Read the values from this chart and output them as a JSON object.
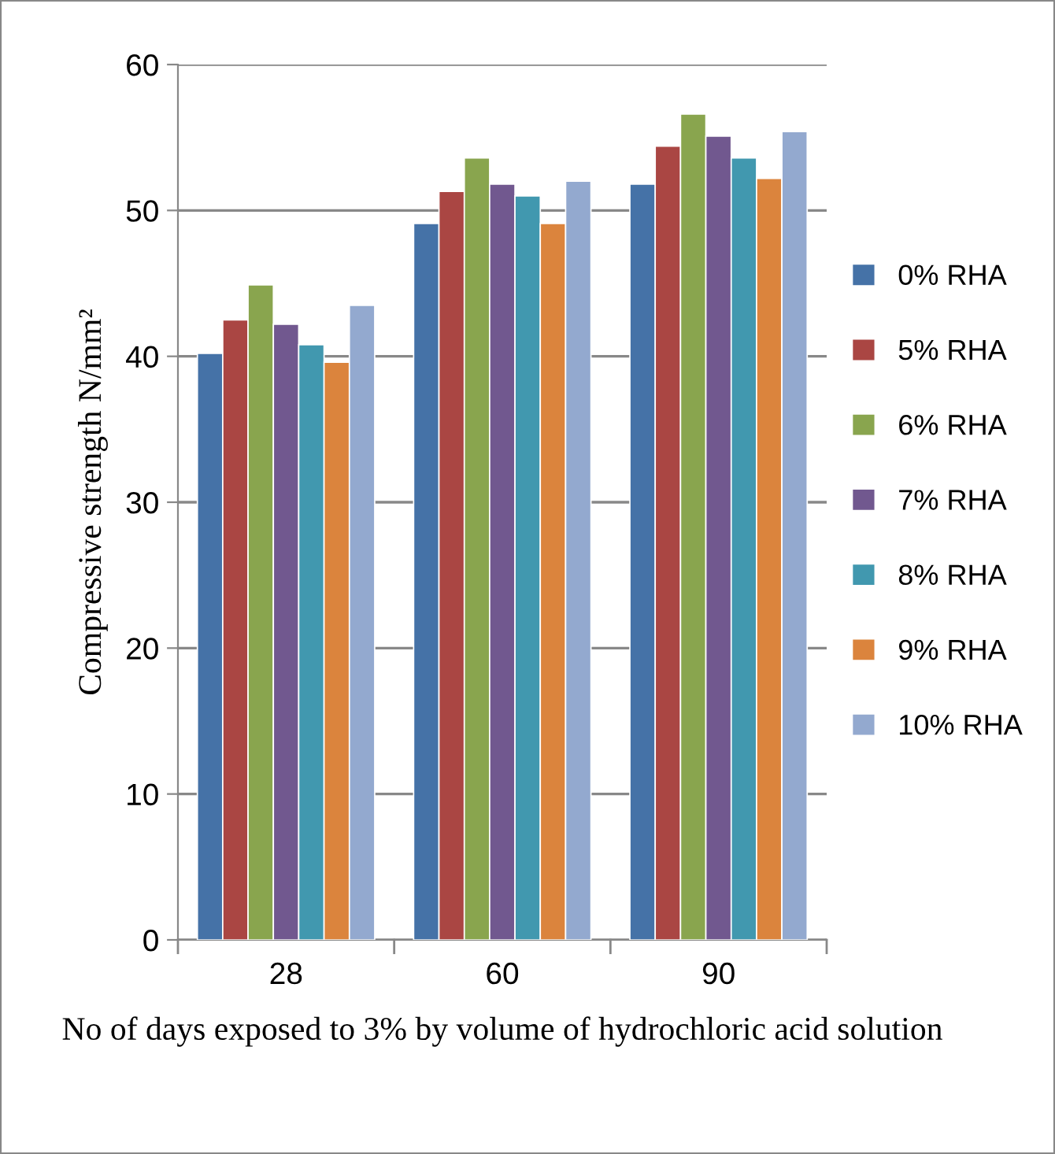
{
  "chart_data": {
    "type": "bar",
    "xlabel": "No of days exposed to 3% by volume of hydrochloric acid solution",
    "ylabel": "Compressive strength N/mm²",
    "categories": [
      "28",
      "60",
      "90"
    ],
    "series": [
      {
        "name": "0% RHA",
        "color": "#4572a7",
        "values": [
          40.2,
          49.1,
          51.8
        ]
      },
      {
        "name": "5% RHA",
        "color": "#aa4643",
        "values": [
          42.5,
          51.3,
          54.4
        ]
      },
      {
        "name": "6% RHA",
        "color": "#89a54e",
        "values": [
          44.9,
          53.6,
          56.6
        ]
      },
      {
        "name": "7% RHA",
        "color": "#71588f",
        "values": [
          42.2,
          51.8,
          55.1
        ]
      },
      {
        "name": "8% RHA",
        "color": "#4198af",
        "values": [
          40.8,
          51.0,
          53.6
        ]
      },
      {
        "name": "9% RHA",
        "color": "#db843d",
        "values": [
          39.6,
          49.1,
          52.2
        ]
      },
      {
        "name": "10% RHA",
        "color": "#93a9cf",
        "values": [
          43.5,
          52.0,
          55.4
        ]
      }
    ],
    "ylim": [
      0,
      60
    ],
    "yticks": [
      0,
      10,
      20,
      30,
      40,
      50,
      60
    ],
    "grid": "y",
    "legend": "right"
  }
}
